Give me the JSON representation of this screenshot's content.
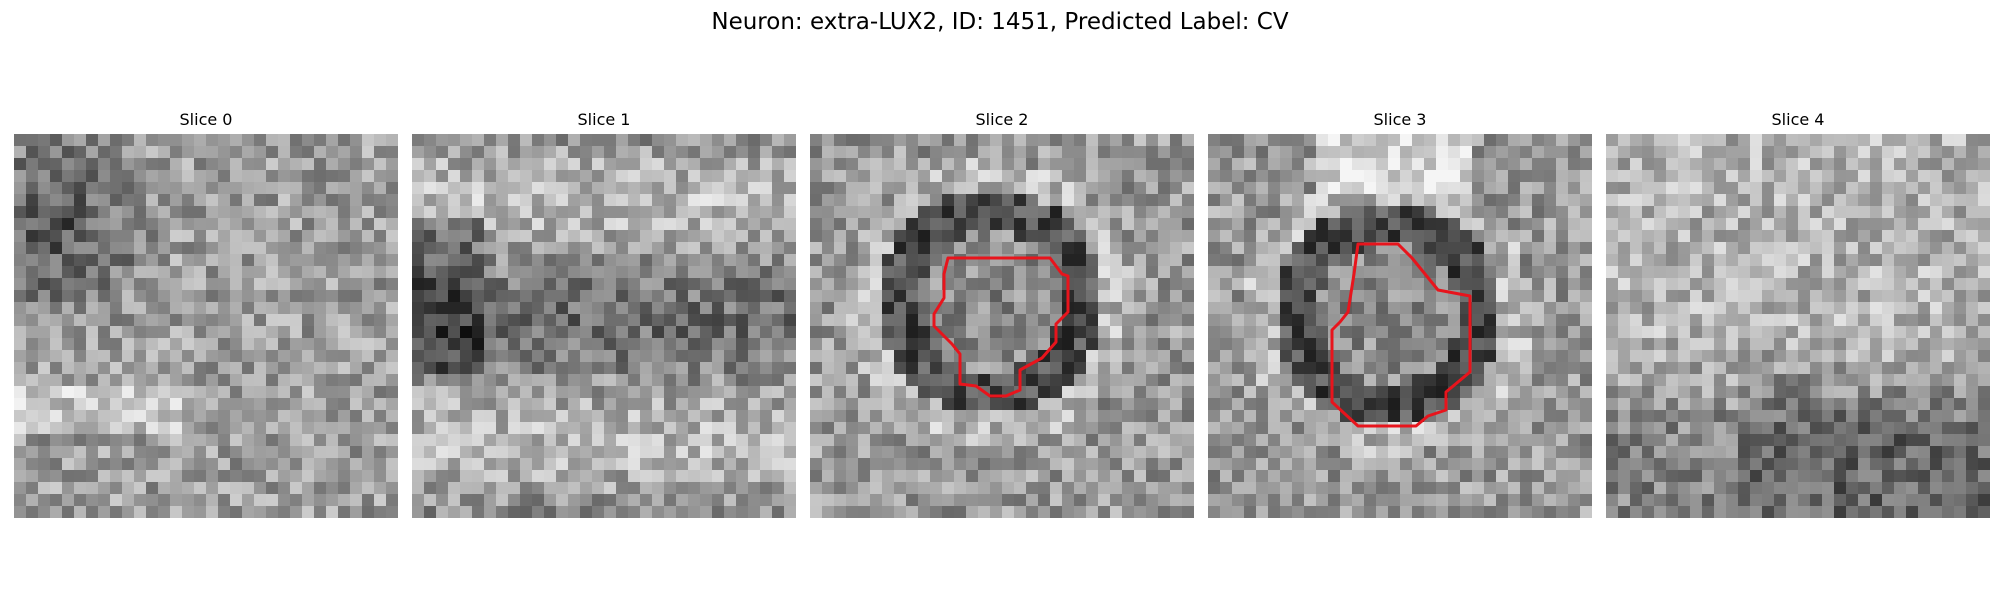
{
  "figure": {
    "title": "Neuron: extra-LUX2, ID: 1451, Predicted Label: CV"
  },
  "panels": [
    {
      "title": "Slice 0",
      "seed": 11,
      "pattern": "left-dark"
    },
    {
      "title": "Slice 1",
      "seed": 23,
      "pattern": "bands"
    },
    {
      "title": "Slice 2",
      "seed": 37,
      "pattern": "ring",
      "outline": true
    },
    {
      "title": "Slice 3",
      "seed": 53,
      "pattern": "ring-offset",
      "outline": true
    },
    {
      "title": "Slice 4",
      "seed": 71,
      "pattern": "bottom-dark"
    }
  ],
  "colors": {
    "background": "#ffffff",
    "outline": "#e8141c"
  }
}
